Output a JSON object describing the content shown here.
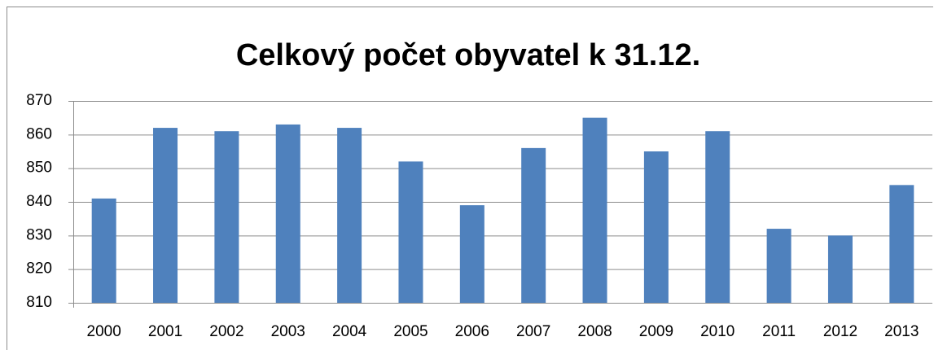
{
  "chart_data": {
    "type": "bar",
    "title": "Celkový počet obyvatel k 31.12.",
    "categories": [
      "2000",
      "2001",
      "2002",
      "2003",
      "2004",
      "2005",
      "2006",
      "2007",
      "2008",
      "2009",
      "2010",
      "2011",
      "2012",
      "2013"
    ],
    "values": [
      841,
      862,
      861,
      863,
      862,
      852,
      839,
      856,
      865,
      855,
      861,
      832,
      830,
      845
    ],
    "color": "#4f81bd",
    "ylim": [
      810,
      870
    ],
    "yticks": [
      810,
      820,
      830,
      840,
      850,
      860,
      870
    ],
    "grid": true
  }
}
